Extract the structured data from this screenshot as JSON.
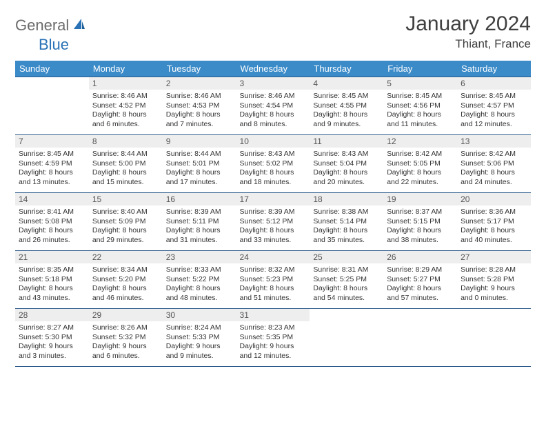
{
  "logo": {
    "general": "General",
    "blue": "Blue"
  },
  "title": "January 2024",
  "location": "Thiant, France",
  "colors": {
    "header_bg": "#3b8bc9",
    "daynum_bg": "#eeeeee",
    "border": "#2a5a8a",
    "text": "#333333",
    "logo_gray": "#6b6b6b",
    "logo_blue": "#2a72b5"
  },
  "weekdays": [
    "Sunday",
    "Monday",
    "Tuesday",
    "Wednesday",
    "Thursday",
    "Friday",
    "Saturday"
  ],
  "weeks": [
    [
      null,
      {
        "n": "1",
        "sunrise": "8:46 AM",
        "sunset": "4:52 PM",
        "dh": "8",
        "dm": "6"
      },
      {
        "n": "2",
        "sunrise": "8:46 AM",
        "sunset": "4:53 PM",
        "dh": "8",
        "dm": "7"
      },
      {
        "n": "3",
        "sunrise": "8:46 AM",
        "sunset": "4:54 PM",
        "dh": "8",
        "dm": "8"
      },
      {
        "n": "4",
        "sunrise": "8:45 AM",
        "sunset": "4:55 PM",
        "dh": "8",
        "dm": "9"
      },
      {
        "n": "5",
        "sunrise": "8:45 AM",
        "sunset": "4:56 PM",
        "dh": "8",
        "dm": "11"
      },
      {
        "n": "6",
        "sunrise": "8:45 AM",
        "sunset": "4:57 PM",
        "dh": "8",
        "dm": "12"
      }
    ],
    [
      {
        "n": "7",
        "sunrise": "8:45 AM",
        "sunset": "4:59 PM",
        "dh": "8",
        "dm": "13"
      },
      {
        "n": "8",
        "sunrise": "8:44 AM",
        "sunset": "5:00 PM",
        "dh": "8",
        "dm": "15"
      },
      {
        "n": "9",
        "sunrise": "8:44 AM",
        "sunset": "5:01 PM",
        "dh": "8",
        "dm": "17"
      },
      {
        "n": "10",
        "sunrise": "8:43 AM",
        "sunset": "5:02 PM",
        "dh": "8",
        "dm": "18"
      },
      {
        "n": "11",
        "sunrise": "8:43 AM",
        "sunset": "5:04 PM",
        "dh": "8",
        "dm": "20"
      },
      {
        "n": "12",
        "sunrise": "8:42 AM",
        "sunset": "5:05 PM",
        "dh": "8",
        "dm": "22"
      },
      {
        "n": "13",
        "sunrise": "8:42 AM",
        "sunset": "5:06 PM",
        "dh": "8",
        "dm": "24"
      }
    ],
    [
      {
        "n": "14",
        "sunrise": "8:41 AM",
        "sunset": "5:08 PM",
        "dh": "8",
        "dm": "26"
      },
      {
        "n": "15",
        "sunrise": "8:40 AM",
        "sunset": "5:09 PM",
        "dh": "8",
        "dm": "29"
      },
      {
        "n": "16",
        "sunrise": "8:39 AM",
        "sunset": "5:11 PM",
        "dh": "8",
        "dm": "31"
      },
      {
        "n": "17",
        "sunrise": "8:39 AM",
        "sunset": "5:12 PM",
        "dh": "8",
        "dm": "33"
      },
      {
        "n": "18",
        "sunrise": "8:38 AM",
        "sunset": "5:14 PM",
        "dh": "8",
        "dm": "35"
      },
      {
        "n": "19",
        "sunrise": "8:37 AM",
        "sunset": "5:15 PM",
        "dh": "8",
        "dm": "38"
      },
      {
        "n": "20",
        "sunrise": "8:36 AM",
        "sunset": "5:17 PM",
        "dh": "8",
        "dm": "40"
      }
    ],
    [
      {
        "n": "21",
        "sunrise": "8:35 AM",
        "sunset": "5:18 PM",
        "dh": "8",
        "dm": "43"
      },
      {
        "n": "22",
        "sunrise": "8:34 AM",
        "sunset": "5:20 PM",
        "dh": "8",
        "dm": "46"
      },
      {
        "n": "23",
        "sunrise": "8:33 AM",
        "sunset": "5:22 PM",
        "dh": "8",
        "dm": "48"
      },
      {
        "n": "24",
        "sunrise": "8:32 AM",
        "sunset": "5:23 PM",
        "dh": "8",
        "dm": "51"
      },
      {
        "n": "25",
        "sunrise": "8:31 AM",
        "sunset": "5:25 PM",
        "dh": "8",
        "dm": "54"
      },
      {
        "n": "26",
        "sunrise": "8:29 AM",
        "sunset": "5:27 PM",
        "dh": "8",
        "dm": "57"
      },
      {
        "n": "27",
        "sunrise": "8:28 AM",
        "sunset": "5:28 PM",
        "dh": "9",
        "dm": "0"
      }
    ],
    [
      {
        "n": "28",
        "sunrise": "8:27 AM",
        "sunset": "5:30 PM",
        "dh": "9",
        "dm": "3"
      },
      {
        "n": "29",
        "sunrise": "8:26 AM",
        "sunset": "5:32 PM",
        "dh": "9",
        "dm": "6"
      },
      {
        "n": "30",
        "sunrise": "8:24 AM",
        "sunset": "5:33 PM",
        "dh": "9",
        "dm": "9"
      },
      {
        "n": "31",
        "sunrise": "8:23 AM",
        "sunset": "5:35 PM",
        "dh": "9",
        "dm": "12"
      },
      null,
      null,
      null
    ]
  ]
}
